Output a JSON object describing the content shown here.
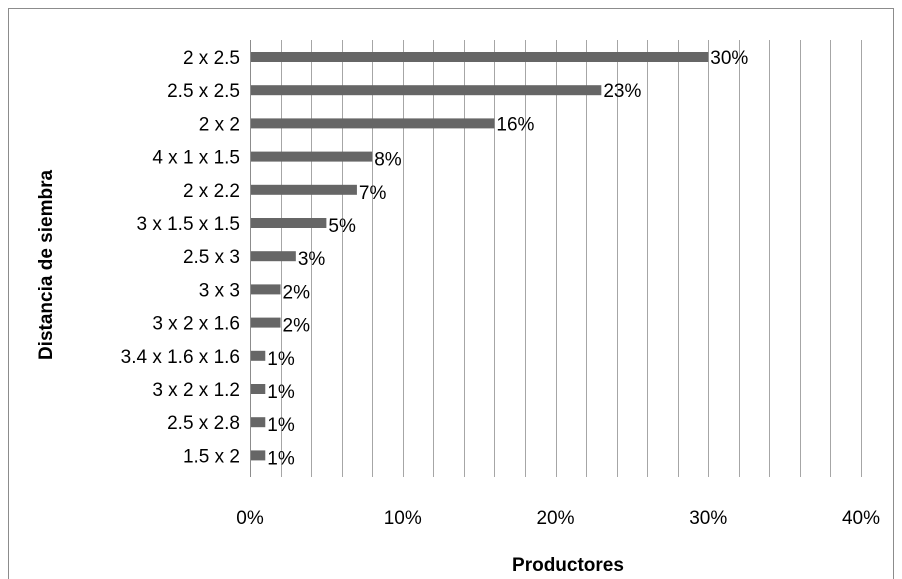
{
  "chart_data": {
    "type": "bar",
    "orientation": "horizontal",
    "categories": [
      "2 x 2.5",
      "2.5 x 2.5",
      "2 x 2",
      "4 x 1 x 1.5",
      "2 x 2.2",
      "3 x 1.5 x 1.5",
      "2.5 x 3",
      "3 x 3",
      "3 x 2 x 1.6",
      "3.4 x 1.6 x 1.6",
      "3 x 2 x 1.2",
      "2.5 x 2.8",
      "1.5 x 2"
    ],
    "values": [
      30,
      23,
      16,
      8,
      7,
      5,
      3,
      2,
      2,
      1,
      1,
      1,
      1
    ],
    "data_labels": [
      "30%",
      "23%",
      "16%",
      "8%",
      "7%",
      "5%",
      "3%",
      "2%",
      "2%",
      "1%",
      "1%",
      "1%",
      "1%"
    ],
    "x_ticks": [
      "0%",
      "10%",
      "20%",
      "30%",
      "40%"
    ],
    "xlim": [
      0,
      40
    ],
    "xlabel": "Productores",
    "ylabel": "Distancia de siembra",
    "grid": "vertical",
    "bar_color": "#666666",
    "grid_color": "#a6a6a6"
  }
}
